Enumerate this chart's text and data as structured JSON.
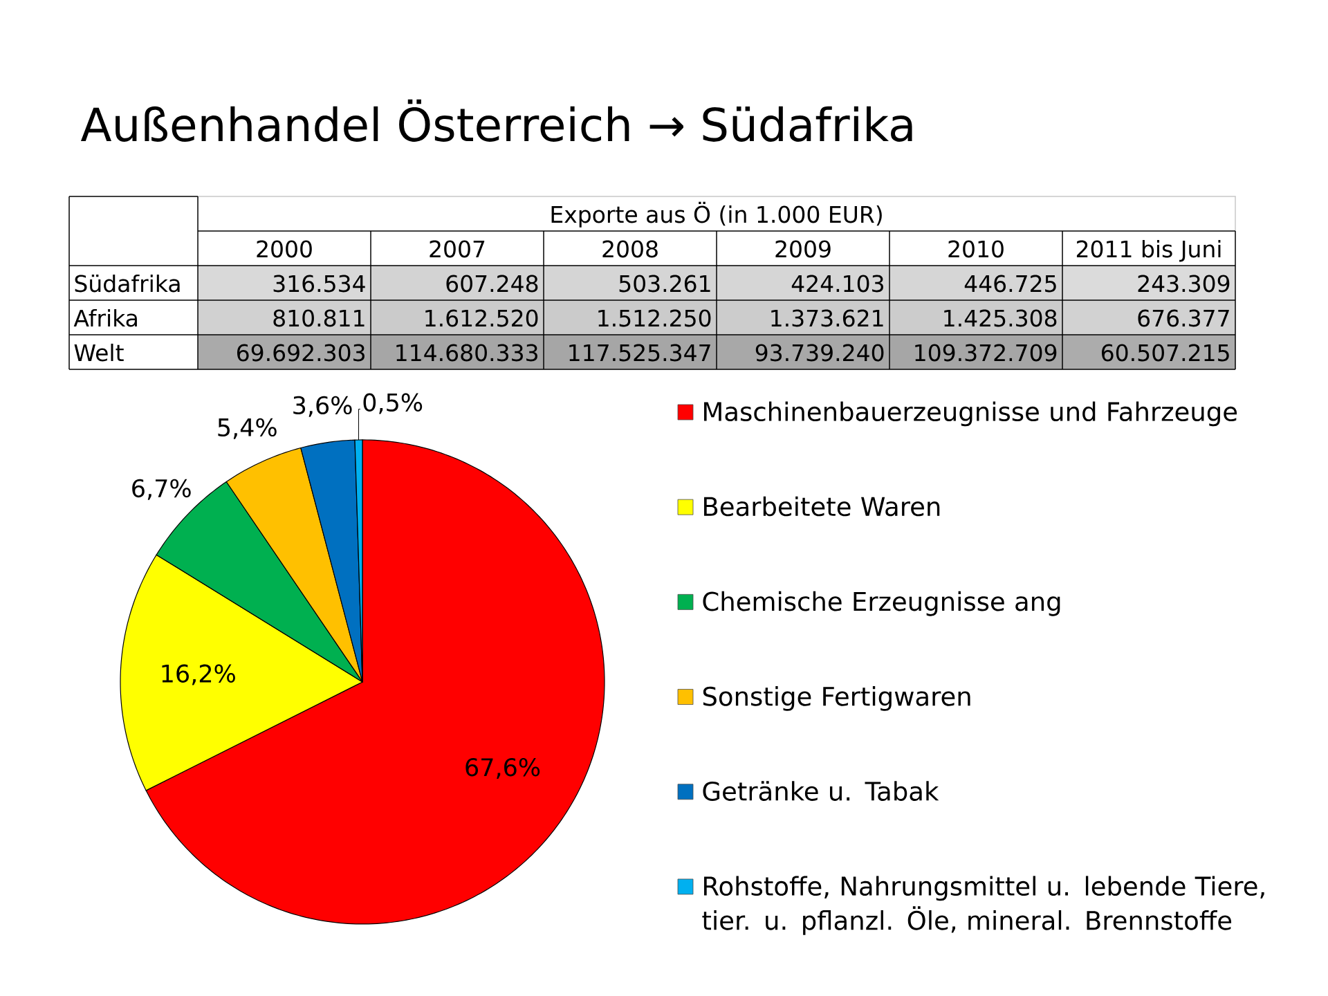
{
  "chart_data": [
    {
      "type": "heatmap",
      "title": "Außenhandel Österreich → Südafrika",
      "subtitle": "Exporte aus Ö (in 1.000 EUR)",
      "categories": [
        "2000",
        "2007",
        "2008",
        "2009",
        "2010",
        "2011 bis Juni"
      ],
      "y_categories": [
        "Südafrika",
        "Afrika",
        "Welt"
      ],
      "cells": [
        [
          316534,
          607248,
          503261,
          424103,
          446725,
          243309
        ],
        [
          810811,
          1612520,
          1512250,
          1373621,
          1425308,
          676377
        ],
        [
          69692303,
          114680333,
          117525347,
          93739240,
          109372709,
          60507215
        ]
      ],
      "cell_labels": [
        [
          "316.534",
          "607.248",
          "503.261",
          "424.103",
          "446.725",
          "243.309"
        ],
        [
          "810.811",
          "1.612.520",
          "1.512.250",
          "1.373.621",
          "1.425.308",
          "676.377"
        ],
        [
          "69.692.303",
          "114.680.333",
          "117.525.347",
          "93.739.240",
          "109.372.709",
          "60.507.215"
        ]
      ]
    },
    {
      "type": "pie",
      "categories": [
        "Maschinenbauerzeugnisse und Fahrzeuge",
        "Bearbeitete Waren",
        "Chemische Erzeugnisse ang",
        "Sonstige Fertigwaren",
        "Getränke u. Tabak",
        "Rohstoffe, Nahrungsmittel u. lebende Tiere, tier. u. pflanzl. Öle, mineral. Brennstoffe"
      ],
      "values": [
        67.6,
        16.2,
        6.7,
        5.4,
        3.6,
        0.5
      ],
      "colors": [
        "#ff0000",
        "#ffff00",
        "#00b050",
        "#ffc000",
        "#0070c0",
        "#00b0f0"
      ],
      "value_labels": [
        "67,6%",
        "16,2%",
        "6,7%",
        "5,4%",
        "3,6%",
        "0,5%"
      ],
      "legend": "right"
    }
  ]
}
